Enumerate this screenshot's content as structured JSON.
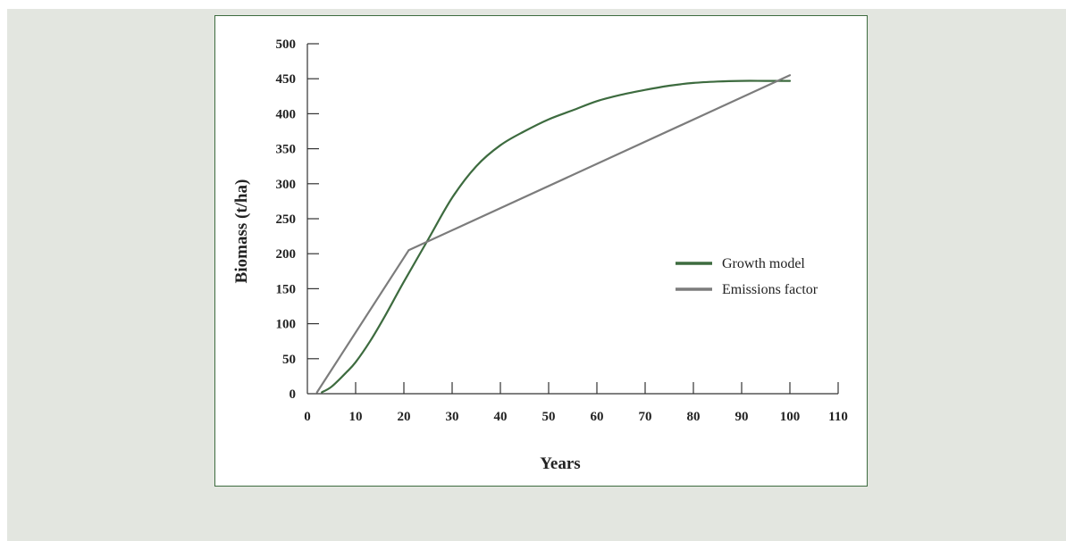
{
  "chart_data": {
    "type": "line",
    "title": "",
    "xlabel": "Years",
    "ylabel": "Biomass (t/ha)",
    "xlim": [
      0,
      110
    ],
    "ylim": [
      0,
      500
    ],
    "x_ticks": [
      "0",
      "10",
      "20",
      "30",
      "40",
      "50",
      "60",
      "70",
      "80",
      "90",
      "100",
      "110"
    ],
    "y_ticks": [
      "0",
      "50",
      "100",
      "150",
      "200",
      "250",
      "300",
      "350",
      "400",
      "450",
      "500"
    ],
    "grid": false,
    "legend_position": "right",
    "series": [
      {
        "name": "Growth model",
        "color": "#3d6b3f",
        "x": [
          3,
          5,
          8,
          10,
          13,
          16,
          20,
          25,
          30,
          35,
          40,
          45,
          50,
          55,
          60,
          65,
          70,
          75,
          80,
          85,
          90,
          95,
          100
        ],
        "y": [
          2,
          10,
          30,
          45,
          75,
          110,
          160,
          220,
          280,
          325,
          355,
          375,
          392,
          405,
          418,
          427,
          434,
          440,
          444,
          446,
          447,
          447,
          447
        ]
      },
      {
        "name": "Emissions factor",
        "color": "#7c7c7c",
        "x": [
          2,
          21,
          100
        ],
        "y": [
          2,
          205,
          455
        ]
      }
    ]
  }
}
